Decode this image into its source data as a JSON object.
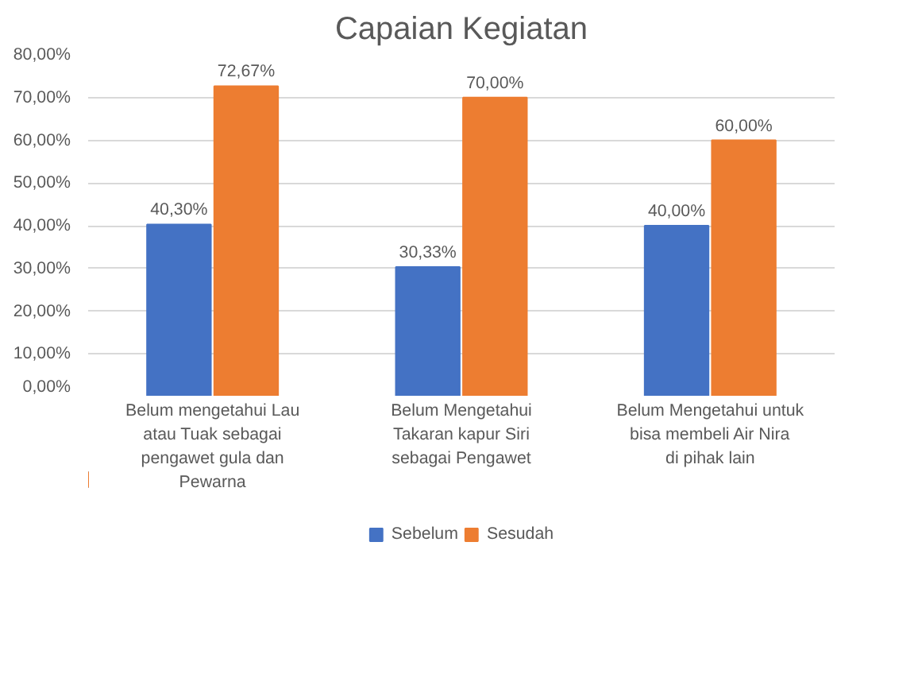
{
  "chart_data": {
    "type": "bar",
    "title": "Capaian Kegiatan",
    "categories": [
      "Belum mengetahui Lau atau Tuak sebagai pengawet gula dan Pewarna",
      "Belum Mengetahui Takaran kapur Siri sebagai Pengawet",
      "Belum Mengetahui untuk bisa membeli Air Nira di pihak lain"
    ],
    "series": [
      {
        "name": "Sebelum",
        "color": "#4472c4",
        "values": [
          40.3,
          30.33,
          40.0
        ],
        "value_labels": [
          "40,30%",
          "30,33%",
          "40,00%"
        ]
      },
      {
        "name": "Sesudah",
        "color": "#ed7d31",
        "values": [
          72.67,
          70.0,
          60.0
        ],
        "value_labels": [
          "72,67%",
          "70,00%",
          "60,00%"
        ]
      }
    ],
    "ylim": [
      0,
      80
    ],
    "yticks": [
      {
        "value": 0,
        "label": "0,00%"
      },
      {
        "value": 10,
        "label": "10,00%"
      },
      {
        "value": 20,
        "label": "20,00%"
      },
      {
        "value": 30,
        "label": "30,00%"
      },
      {
        "value": 40,
        "label": "40,00%"
      },
      {
        "value": 50,
        "label": "50,00%"
      },
      {
        "value": 60,
        "label": "60,00%"
      },
      {
        "value": 70,
        "label": "70,00%"
      },
      {
        "value": 80,
        "label": "80,00%"
      }
    ],
    "grid": "y",
    "legend": "bottom"
  }
}
